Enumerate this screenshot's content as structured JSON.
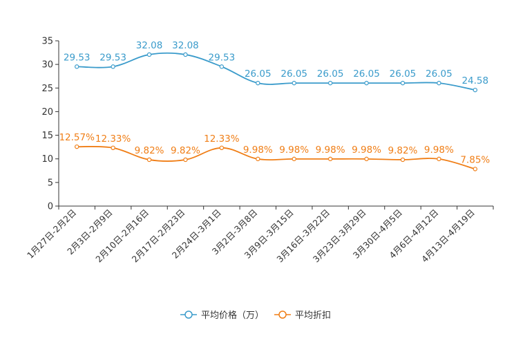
{
  "chart_data": {
    "type": "line",
    "categories": [
      "1月27日-2月2日",
      "2月3日-2月9日",
      "2月10日-2月16日",
      "2月17日-2月23日",
      "2月24日-3月1日",
      "3月2日-3月8日",
      "3月9日-3月15日",
      "3月16日-3月22日",
      "3月23日-3月29日",
      "3月30日-4月5日",
      "4月6日-4月12日",
      "4月13日-4月19日"
    ],
    "ylim": [
      0,
      35
    ],
    "yticks": [
      0,
      5,
      10,
      15,
      20,
      25,
      30,
      35
    ],
    "series": [
      {
        "name": "平均价格（万）",
        "color": "#3a9bcb",
        "values": [
          29.53,
          29.53,
          32.08,
          32.08,
          29.53,
          26.05,
          26.05,
          26.05,
          26.05,
          26.05,
          26.05,
          24.58
        ],
        "labels": [
          "29.53",
          "29.53",
          "32.08",
          "32.08",
          "29.53",
          "26.05",
          "26.05",
          "26.05",
          "26.05",
          "26.05",
          "26.05",
          "24.58"
        ]
      },
      {
        "name": "平均折扣",
        "color": "#f07e16",
        "values": [
          12.57,
          12.33,
          9.82,
          9.82,
          12.33,
          9.98,
          9.98,
          9.98,
          9.98,
          9.82,
          9.98,
          7.85
        ],
        "labels": [
          "12.57%",
          "12.33%",
          "9.82%",
          "9.82%",
          "12.33%",
          "9.98%",
          "9.98%",
          "9.98%",
          "9.98%",
          "9.82%",
          "9.98%",
          "7.85%"
        ]
      }
    ],
    "legend_position": "bottom-center",
    "grid": false
  }
}
